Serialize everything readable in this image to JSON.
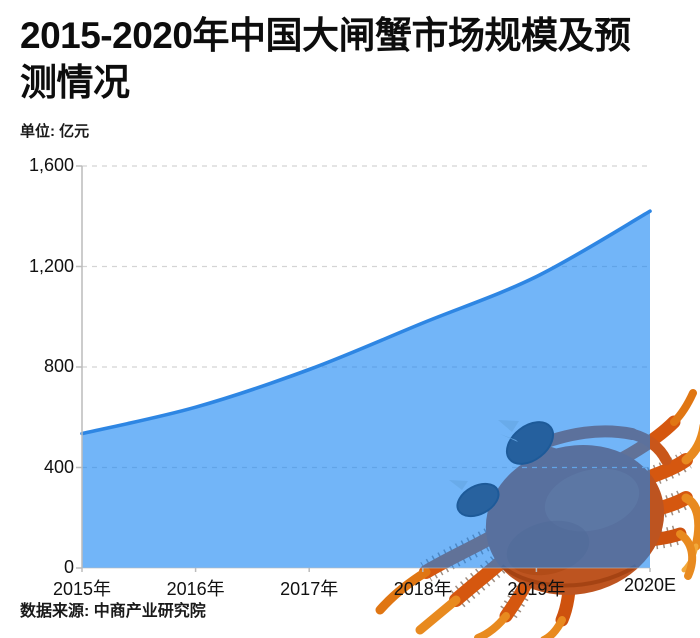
{
  "header": {
    "title_line1": "2015-2020年中国大闸蟹市场规模及预",
    "title_line2": "测情况",
    "unit_label": "单位: 亿元"
  },
  "footer": {
    "source": "数据来源: 中商产业研究院"
  },
  "chart_data": {
    "type": "area",
    "title": "2015-2020年中国大闸蟹市场规模及预测情况",
    "subtitle_unit": "单位: 亿元",
    "categories": [
      "2015年",
      "2016年",
      "2017年",
      "2018年",
      "2019年",
      "2020E"
    ],
    "values": [
      535,
      640,
      790,
      975,
      1160,
      1420
    ],
    "xlabel": "",
    "ylabel": "亿元",
    "ylim": [
      0,
      1600
    ],
    "yticks": [
      0,
      400,
      800,
      1200,
      1600
    ],
    "ytick_labels": [
      "0",
      "400",
      "800",
      "1,200",
      "1,600"
    ],
    "grid": "horizontal-dashed",
    "legend": "none",
    "colors": {
      "area_fill": "rgba(20,132,243,0.6)",
      "area_flat_appearance": "#72B5F8",
      "line": "#2E86E3",
      "gridline": "#d4d4d4",
      "axis": "#bcbcbc",
      "text": "#111111"
    },
    "decoration": "crab-photo-bottom-right"
  }
}
